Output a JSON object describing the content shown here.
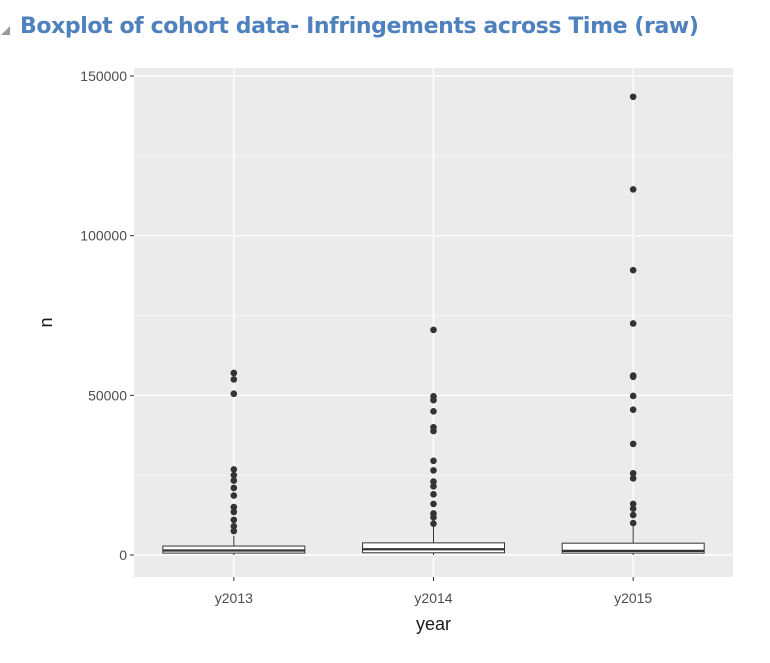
{
  "slide": {
    "title": "Boxplot of cohort data- Infringements across Time (raw)"
  },
  "colors": {
    "title": "#4f81bd",
    "panel": "#ebebeb",
    "grid": "#ffffff",
    "box_fill": "#ffffff",
    "box_line": "#333333",
    "point": "#333333",
    "tick_text": "#4d4d4d",
    "axis_title": "#1a1a1a"
  },
  "chart_data": {
    "type": "boxplot",
    "title": "",
    "xlabel": "year",
    "ylabel": "n",
    "ylim": [
      -6500,
      150000
    ],
    "y_ticks": [
      0,
      50000,
      100000,
      150000
    ],
    "y_tick_labels": [
      "0",
      "50000",
      "100000",
      "150000"
    ],
    "categories": [
      "y2013",
      "y2014",
      "y2015"
    ],
    "grid": true,
    "series": [
      {
        "category": "y2013",
        "min": 0,
        "q1": 600,
        "median": 1400,
        "q3": 2800,
        "max": 6000,
        "outliers": [
          57000,
          55000,
          50500,
          26800,
          25000,
          23300,
          21000,
          18600,
          15000,
          13500,
          11000,
          9000,
          7500
        ]
      },
      {
        "category": "y2014",
        "min": 0,
        "q1": 700,
        "median": 1800,
        "q3": 3800,
        "max": 9000,
        "outliers": [
          70500,
          49700,
          48500,
          45000,
          40000,
          38800,
          29500,
          26500,
          23000,
          21500,
          19000,
          16000,
          13000,
          11800,
          9800
        ]
      },
      {
        "category": "y2015",
        "min": 0,
        "q1": 600,
        "median": 1300,
        "q3": 3700,
        "max": 9000,
        "outliers": [
          143500,
          114500,
          89200,
          72500,
          56200,
          55800,
          49800,
          45500,
          34800,
          25600,
          24000,
          16000,
          14500,
          12500,
          10000
        ]
      }
    ]
  }
}
